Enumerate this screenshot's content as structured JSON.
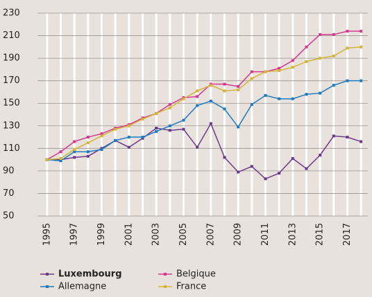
{
  "chart_data": {
    "type": "line",
    "categories": [
      "1995",
      null,
      "1997",
      null,
      "1999",
      null,
      "2001",
      null,
      "2003",
      null,
      "2005",
      null,
      "2007",
      null,
      "2009",
      null,
      "2011",
      null,
      "2013",
      null,
      "2015",
      null,
      "2017",
      null
    ],
    "series": [
      {
        "name": "Luxembourg",
        "color": "#6b3a8c",
        "bold": true,
        "values": [
          100,
          100,
          102,
          103,
          110,
          117,
          111,
          119,
          128,
          126,
          127,
          111,
          132,
          102,
          89,
          94,
          83,
          88,
          101,
          92,
          104,
          121,
          120,
          116
        ]
      },
      {
        "name": "Belgique",
        "color": "#d6388e",
        "values": [
          100,
          107,
          116,
          120,
          123,
          128,
          131,
          137,
          141,
          149,
          155,
          156,
          167,
          167,
          165,
          178,
          178,
          181,
          188,
          200,
          211,
          211,
          214,
          214
        ]
      },
      {
        "name": "Allemagne",
        "color": "#1e7bc0",
        "values": [
          100,
          99,
          107,
          107,
          109,
          117,
          120,
          120,
          125,
          130,
          135,
          148,
          152,
          145,
          129,
          149,
          157,
          154,
          154,
          158,
          159,
          166,
          170,
          170
        ]
      },
      {
        "name": "France",
        "color": "#d4b53a",
        "values": [
          100,
          101,
          109,
          115,
          121,
          127,
          130,
          136,
          141,
          146,
          154,
          161,
          166,
          161,
          162,
          172,
          178,
          179,
          182,
          187,
          190,
          192,
          199,
          200
        ]
      }
    ],
    "ylim": [
      50,
      230
    ],
    "yticks": [
      50,
      70,
      90,
      110,
      130,
      150,
      170,
      190,
      210,
      230
    ],
    "grid": true
  }
}
